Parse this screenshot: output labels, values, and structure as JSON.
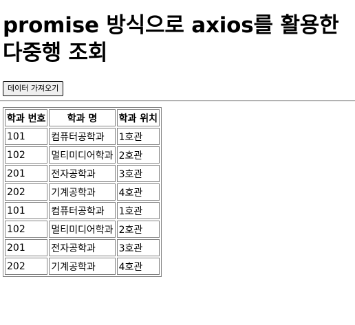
{
  "page": {
    "title": "promise 방식으로 axios를 활용한 다중행 조회"
  },
  "toolbar": {
    "fetch_label": "데이터 가져오기"
  },
  "table": {
    "headers": [
      "학과 번호",
      "학과 명",
      "학과 위치"
    ],
    "rows": [
      [
        "101",
        "컴퓨터공학과",
        "1호관"
      ],
      [
        "102",
        "멀티미디어학과",
        "2호관"
      ],
      [
        "201",
        "전자공학과",
        "3호관"
      ],
      [
        "202",
        "기계공학과",
        "4호관"
      ],
      [
        "101",
        "컴퓨터공학과",
        "1호관"
      ],
      [
        "102",
        "멀티미디어학과",
        "2호관"
      ],
      [
        "201",
        "전자공학과",
        "3호관"
      ],
      [
        "202",
        "기계공학과",
        "4호관"
      ]
    ]
  }
}
